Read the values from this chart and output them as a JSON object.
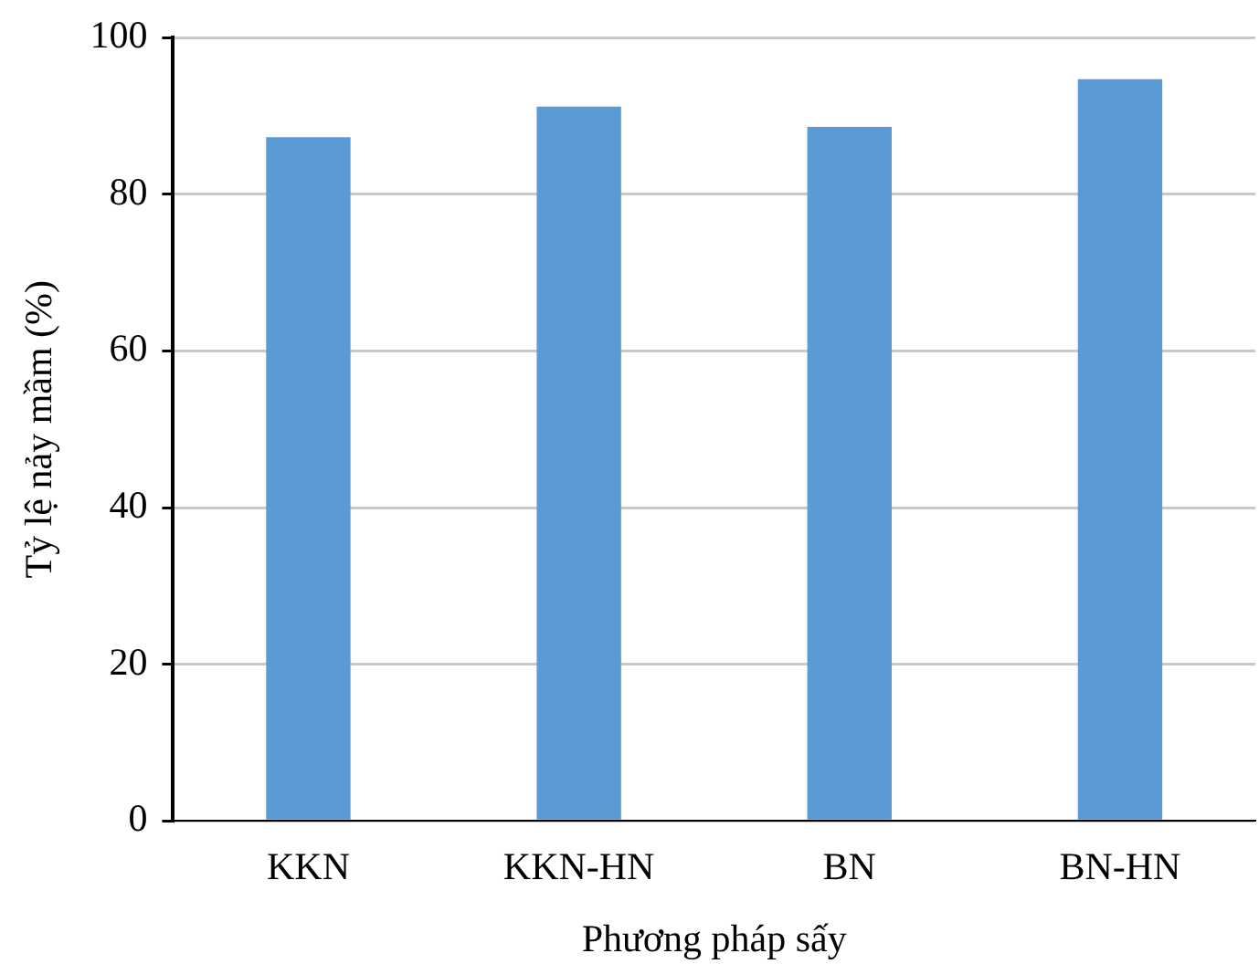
{
  "chart_data": {
    "type": "bar",
    "xlabel": "Phương pháp sấy",
    "ylabel": "Tỷ lệ nảy mầm (%)",
    "categories": [
      "KKN",
      "KKN-HN",
      "BN",
      "BN-HN"
    ],
    "values": [
      87.3,
      91.2,
      88.6,
      94.7
    ],
    "color": "#5b9bd5",
    "ylim": [
      0,
      100
    ],
    "yticks": [
      0,
      20,
      40,
      60,
      80,
      100
    ],
    "grid": "y",
    "legend": false
  }
}
